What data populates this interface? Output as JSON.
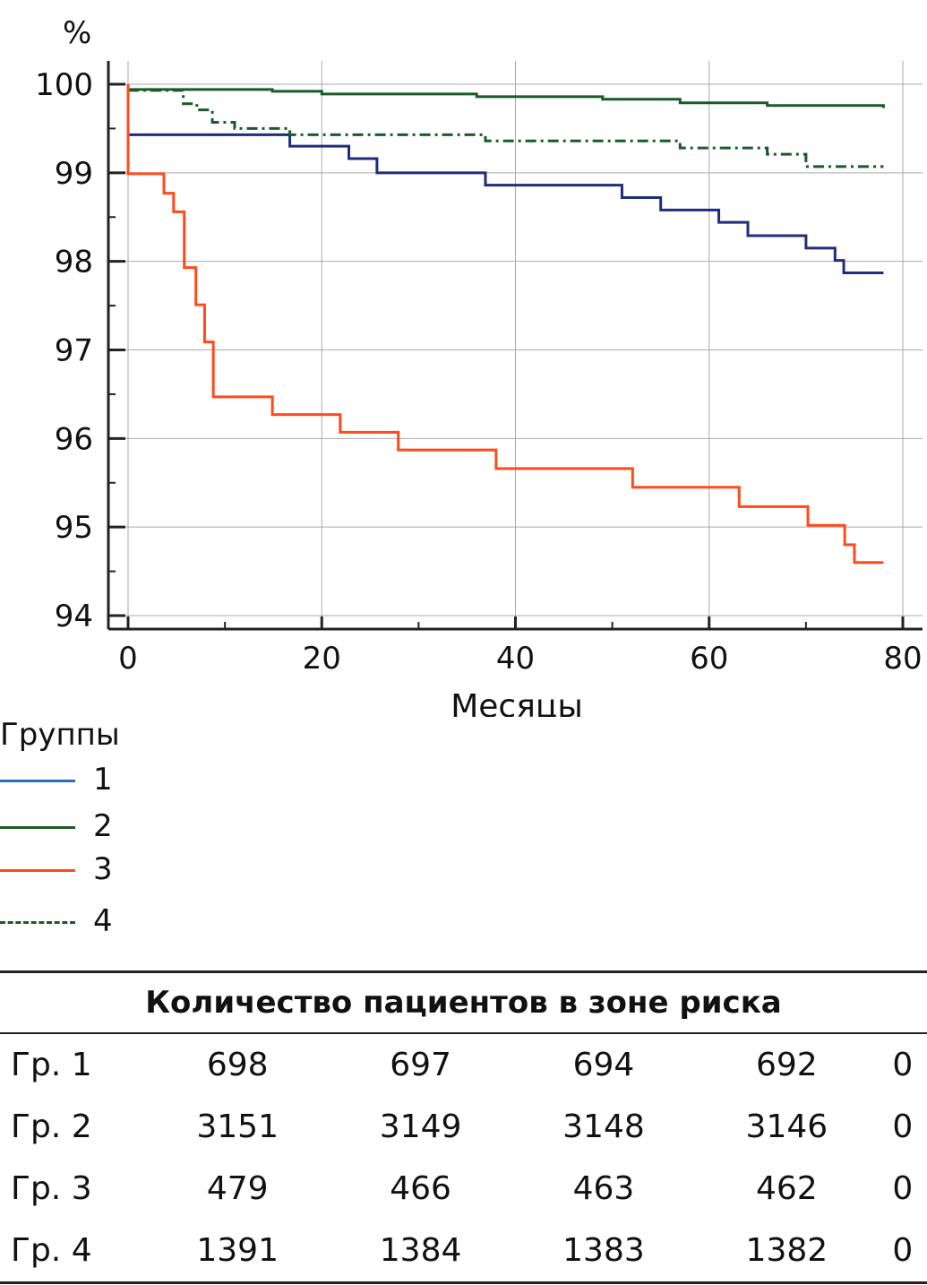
{
  "chart_data": {
    "type": "line",
    "style": "step (Kaplan-Meier)",
    "ylabel": "%",
    "xlabel": "Месяцы",
    "xlim": [
      0,
      80
    ],
    "ylim": [
      94,
      100
    ],
    "xticks": [
      0,
      20,
      40,
      60,
      80
    ],
    "yticks": [
      94,
      95,
      96,
      97,
      98,
      99,
      100
    ],
    "grid": true,
    "legend_title": "Группы",
    "legend_position": "below-left",
    "series": [
      {
        "name": "1",
        "color": "#1f2d7a",
        "legend_color": "#2a6db5",
        "dash": "solid",
        "x": [
          0,
          0,
          16.7,
          22.8,
          25.7,
          36.9,
          51,
          55,
          61,
          64,
          70,
          73,
          73.9,
          78
        ],
        "y": [
          100,
          99.43,
          99.3,
          99.16,
          99.0,
          98.86,
          98.72,
          98.58,
          98.44,
          98.29,
          98.15,
          98.01,
          97.87,
          97.87
        ]
      },
      {
        "name": "2",
        "color": "#1a5a2a",
        "legend_color": "#1a5a2a",
        "dash": "solid",
        "x": [
          0,
          14.9,
          20,
          36,
          49,
          57,
          66,
          78
        ],
        "y": [
          99.94,
          99.92,
          99.89,
          99.86,
          99.83,
          99.79,
          99.76,
          99.73
        ]
      },
      {
        "name": "3",
        "color": "#ff4a1a",
        "legend_color": "#ff4a1a",
        "dash": "solid",
        "x": [
          0,
          0,
          3.7,
          4.7,
          5.8,
          7,
          7.9,
          8.8,
          14.9,
          21.9,
          27.9,
          38,
          52.1,
          63.1,
          70.2,
          74,
          75,
          78
        ],
        "y": [
          100,
          98.99,
          98.77,
          98.56,
          97.93,
          97.51,
          97.09,
          96.47,
          96.27,
          96.07,
          95.87,
          95.66,
          95.45,
          95.23,
          95.02,
          94.8,
          94.6,
          94.6
        ]
      },
      {
        "name": "4",
        "color": "#1a5a2a",
        "legend_color": "#1a5a2a",
        "dash": "dashdot",
        "x": [
          0,
          5.7,
          7.1,
          8.7,
          11,
          16.7,
          36.9,
          57,
          66,
          70,
          78
        ],
        "y": [
          99.93,
          99.78,
          99.71,
          99.57,
          99.5,
          99.43,
          99.36,
          99.28,
          99.21,
          99.07,
          99.07
        ]
      }
    ]
  },
  "table": {
    "title": "Количество пациентов в зоне риска",
    "rows": [
      {
        "group": "Гр. 1",
        "values": [
          "698",
          "697",
          "694",
          "692",
          "0"
        ]
      },
      {
        "group": "Гр. 2",
        "values": [
          "3151",
          "3149",
          "3148",
          "3146",
          "0"
        ]
      },
      {
        "group": "Гр. 3",
        "values": [
          "479",
          "466",
          "463",
          "462",
          "0"
        ]
      },
      {
        "group": "Гр. 4",
        "values": [
          "1391",
          "1384",
          "1383",
          "1382",
          "0"
        ]
      }
    ]
  }
}
